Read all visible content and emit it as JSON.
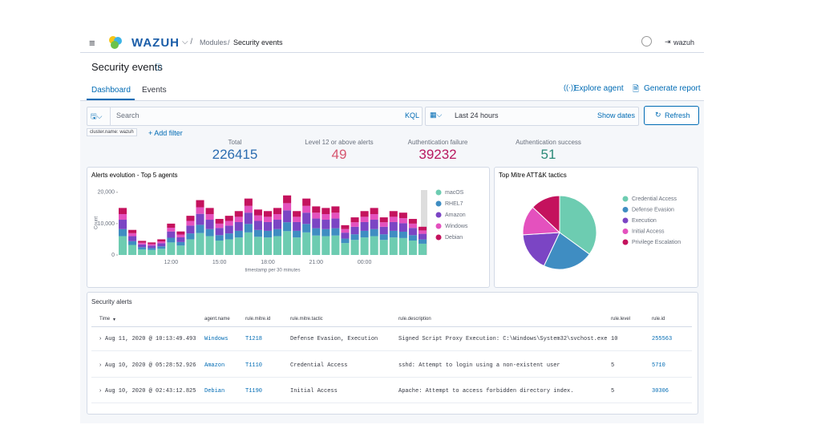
{
  "header": {
    "brand": "WAZUH",
    "breadcrumb": [
      "Modules",
      "Security events"
    ],
    "user": "wazuh"
  },
  "page_title": "Security events",
  "tabs": [
    "Dashboard",
    "Events"
  ],
  "actions": [
    "Explore agent",
    "Generate report"
  ],
  "search": {
    "placeholder": "Search",
    "language": "KQL",
    "time": "Last 24 hours",
    "show_dates": "Show dates",
    "refresh": "Refresh"
  },
  "filters": {
    "pill": "cluster.name: wazuh",
    "add": "+ Add filter"
  },
  "stats": [
    {
      "label": "Total",
      "value": 226415,
      "color": "#2b6cb0"
    },
    {
      "label": "Level 12 or above alerts",
      "value": 49,
      "color": "#d6566f"
    },
    {
      "label": "Authentication failure",
      "value": 39232,
      "color": "#b8185f"
    },
    {
      "label": "Authentication success",
      "value": 51,
      "color": "#2a8a78"
    }
  ],
  "chart_data": [
    {
      "type": "bar",
      "stacked": true,
      "title": "Alerts evolution - Top 5 agents",
      "y_label": "Count",
      "x_label": "timestamp per 30 minutes",
      "legend": "right",
      "categories": [
        null,
        null,
        null,
        null,
        null,
        "12:00",
        null,
        null,
        null,
        null,
        "15:00",
        null,
        null,
        null,
        null,
        "18:00",
        null,
        null,
        null,
        null,
        "21:00",
        null,
        null,
        null,
        null,
        "00:00",
        null,
        null,
        null,
        null,
        null,
        null
      ],
      "ylim": [
        0,
        22000
      ],
      "yticks": [
        0,
        {
          "value": 10000,
          "label": "10,000"
        },
        {
          "value": 20000,
          "label": "20,000"
        }
      ],
      "series": [
        {
          "name": "macOS",
          "color": "#6dccb1",
          "values": [
            6000,
            3200,
            1800,
            1600,
            2000,
            4000,
            3000,
            5000,
            7000,
            6000,
            4600,
            5000,
            5600,
            7200,
            5800,
            5600,
            6000,
            7600,
            5600,
            7200,
            6200,
            6000,
            6200,
            3800,
            4800,
            5600,
            6000,
            4800,
            5600,
            5400,
            4600,
            3600
          ]
        },
        {
          "name": "RHEL7",
          "color": "#3f8dc2",
          "values": [
            2250,
            1200,
            675,
            600,
            750,
            1500,
            1125,
            1875,
            2625,
            2250,
            1725,
            1875,
            2100,
            2700,
            2175,
            2100,
            2250,
            2850,
            2100,
            2700,
            2325,
            2250,
            2325,
            1425,
            1800,
            2100,
            2250,
            1800,
            2100,
            2025,
            1725,
            1350
          ]
        },
        {
          "name": "Amazon",
          "color": "#7b45c4",
          "values": [
            3000,
            1600,
            900,
            800,
            1000,
            2000,
            1500,
            2500,
            3500,
            3000,
            2300,
            2500,
            2800,
            3600,
            2900,
            2800,
            3000,
            3800,
            2800,
            3600,
            3100,
            3000,
            3100,
            1900,
            2400,
            2800,
            3000,
            2400,
            2800,
            2700,
            2300,
            1800
          ]
        },
        {
          "name": "Windows",
          "color": "#e451be",
          "values": [
            1800,
            960,
            540,
            480,
            600,
            1200,
            900,
            1500,
            2100,
            1800,
            1380,
            1500,
            1680,
            2160,
            1740,
            1680,
            1800,
            2280,
            1680,
            2160,
            1860,
            1800,
            1860,
            1140,
            1440,
            1680,
            1800,
            1440,
            1680,
            1620,
            1380,
            1080
          ]
        },
        {
          "name": "Debian",
          "color": "#c4125d",
          "values": [
            1950,
            1040,
            585,
            520,
            650,
            1300,
            975,
            1625,
            2275,
            1950,
            1495,
            1625,
            1820,
            2340,
            1885,
            1820,
            1950,
            2470,
            1820,
            2340,
            2015,
            1950,
            2015,
            1235,
            1560,
            1820,
            1950,
            1560,
            1820,
            1755,
            1495,
            1170
          ]
        }
      ]
    },
    {
      "type": "pie",
      "title": "Top Mitre ATT&K tactics",
      "legend": "right",
      "categories": [
        "Credential Access",
        "Defense Evasion",
        "Execution",
        "Initial Access",
        "Privilege Escalation"
      ],
      "values": [
        35,
        22,
        17,
        13,
        13
      ],
      "colors": [
        "#6dccb1",
        "#3f8dc2",
        "#7b45c4",
        "#e451be",
        "#c4125d"
      ]
    }
  ],
  "table": {
    "title": "Security alerts",
    "columns": [
      "Time",
      "agent.name",
      "rule.mitre.id",
      "rule.mitre.tactic",
      "rule.description",
      "rule.level",
      "rule.id"
    ],
    "rows": [
      [
        "Aug 11, 2020 @ 10:13:49.493",
        "Windows",
        "T1218",
        "Defense Evasion, Execution",
        "Signed Script Proxy Execution: C:\\Windows\\System32\\svchost.exe",
        "10",
        "255563"
      ],
      [
        "Aug 10, 2020 @ 05:28:52.926",
        "Amazon",
        "T1110",
        "Credential Access",
        "sshd: Attempt to login using a non-existent user",
        "5",
        "5710"
      ],
      [
        "Aug 10, 2020 @ 02:43:12.825",
        "Debian",
        "T1190",
        "Initial Access",
        "Apache: Attempt to access forbidden directory index.",
        "5",
        "30306"
      ]
    ]
  }
}
